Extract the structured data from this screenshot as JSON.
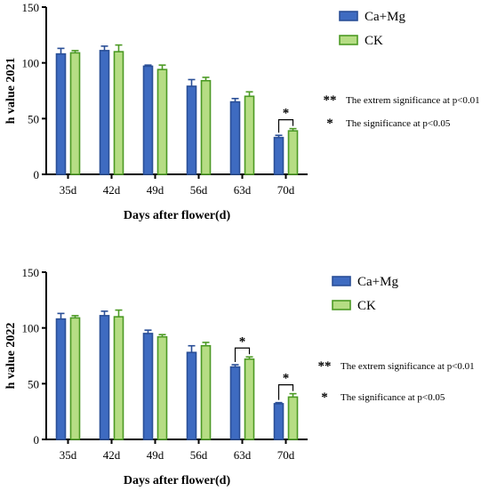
{
  "colors": {
    "ca_fill": "#3e6bc1",
    "ca_stroke": "#2a4f97",
    "ck_fill": "#b6dd84",
    "ck_stroke": "#4c9a24",
    "axis": "#000000"
  },
  "chart_data": [
    {
      "type": "bar",
      "categories": [
        "35d",
        "42d",
        "49d",
        "56d",
        "63d",
        "70d"
      ],
      "series": [
        {
          "name": "Ca+Mg",
          "values": [
            108,
            111,
            97,
            79,
            65,
            33
          ],
          "errors": [
            5,
            4,
            1,
            6,
            3,
            2
          ]
        },
        {
          "name": "CK",
          "values": [
            109,
            110,
            94,
            84,
            70,
            39
          ],
          "errors": [
            2,
            6,
            4,
            3,
            4,
            2
          ]
        }
      ],
      "ylabel": "h value 2021",
      "xlabel": "Days after flower(d)",
      "ylim": [
        0,
        150
      ],
      "yticks": [
        0,
        50,
        100,
        150
      ],
      "significance": [
        {
          "category": "70d",
          "mark": "*"
        }
      ],
      "legend_notes": [
        {
          "mark": "**",
          "text": "The extrem significance at p<0.01"
        },
        {
          "mark": "*",
          "text": "The significance at p<0.05"
        }
      ]
    },
    {
      "type": "bar",
      "categories": [
        "35d",
        "42d",
        "49d",
        "56d",
        "63d",
        "70d"
      ],
      "series": [
        {
          "name": "Ca+Mg",
          "values": [
            108,
            111,
            95,
            78,
            65,
            32
          ],
          "errors": [
            5,
            4,
            3,
            6,
            2,
            1
          ]
        },
        {
          "name": "CK",
          "values": [
            109,
            110,
            92,
            84,
            72,
            38
          ],
          "errors": [
            2,
            6,
            2,
            3,
            2,
            3
          ]
        }
      ],
      "ylabel": "h value 2022",
      "xlabel": "Days after flower(d)",
      "ylim": [
        0,
        150
      ],
      "yticks": [
        0,
        50,
        100,
        150
      ],
      "significance": [
        {
          "category": "63d",
          "mark": "*"
        },
        {
          "category": "70d",
          "mark": "*"
        }
      ],
      "legend_notes": [
        {
          "mark": "**",
          "text": "The extrem significance at p<0.01"
        },
        {
          "mark": "*",
          "text": "The significance at p<0.05"
        }
      ]
    }
  ]
}
